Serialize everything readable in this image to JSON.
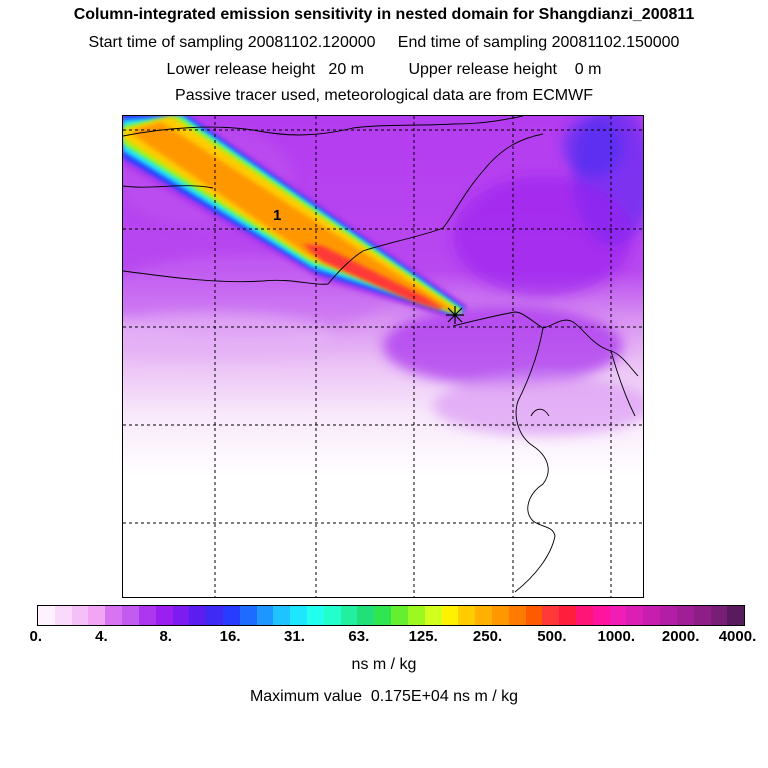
{
  "header": {
    "title": "Column-integrated emission sensitivity in nested domain for Shangdianzi_200811",
    "sampling": "Start time of sampling 20081102.120000     End time of sampling 20081102.150000",
    "release": "Lower release height   20 m          Upper release height    0 m",
    "note": "Passive tracer used, meteorological data are from ECMWF"
  },
  "map": {
    "contour_label": "1",
    "release_marker": "star-marker",
    "gridlines": "dashed"
  },
  "colorbar": {
    "tick_labels": [
      "0.",
      "4.",
      "8.",
      "16.",
      "31.",
      "63.",
      "125.",
      "250.",
      "500.",
      "1000.",
      "2000.",
      "4000."
    ],
    "colors": [
      "#fff2ff",
      "#fbd9fb",
      "#f5c0f8",
      "#f0a6f5",
      "#d873f2",
      "#c35bf0",
      "#ad37ee",
      "#9a1ff0",
      "#7c1cf0",
      "#5a1ef0",
      "#3e2af5",
      "#283cff",
      "#1e6cff",
      "#1e96ff",
      "#1ec3ff",
      "#1ee6ff",
      "#22ffee",
      "#22ffcc",
      "#22f0a0",
      "#22e078",
      "#30e650",
      "#64f030",
      "#9cf81e",
      "#d2ff1e",
      "#fff200",
      "#ffcc00",
      "#ffb000",
      "#ff9800",
      "#ff7a00",
      "#ff5a00",
      "#ff3838",
      "#ff1e3c",
      "#ff1478",
      "#ff149e",
      "#f01eb4",
      "#dc1eb4",
      "#c81eb0",
      "#b41ea6",
      "#a01e96",
      "#8c1e86",
      "#781e76",
      "#5a1a5e"
    ],
    "units": "ns m / kg",
    "max_text": "Maximum value  0.175E+04 ns m / kg"
  }
}
